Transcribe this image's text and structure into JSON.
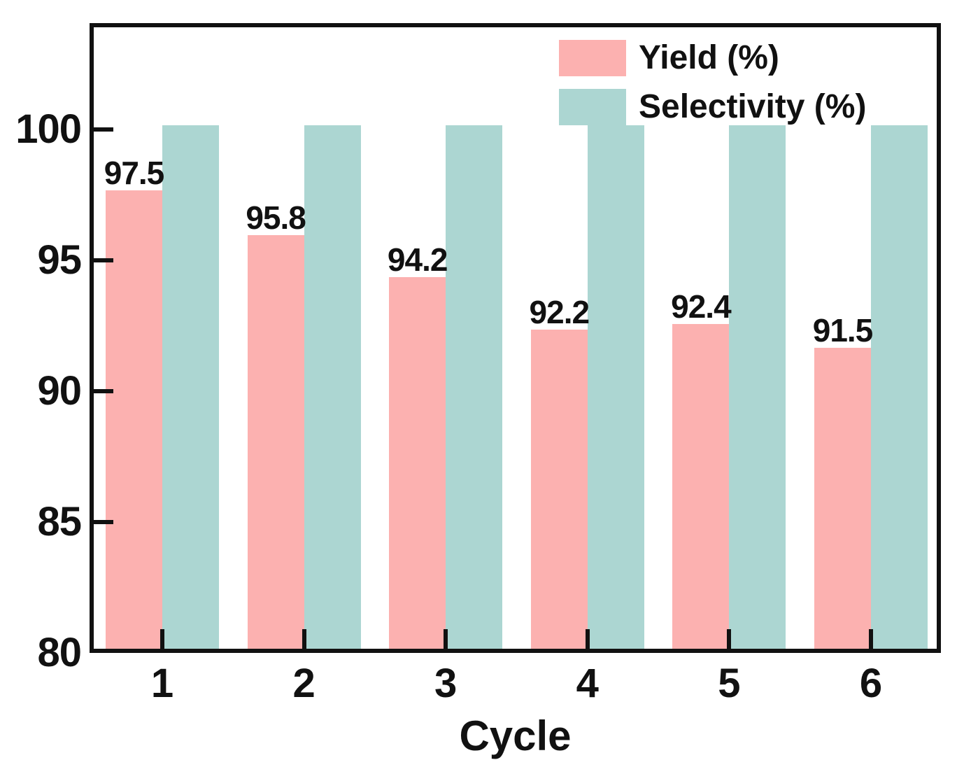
{
  "chart_data": {
    "type": "bar",
    "title": "",
    "xlabel": "Cycle",
    "ylabel": "",
    "categories": [
      "1",
      "2",
      "3",
      "4",
      "5",
      "6"
    ],
    "series": [
      {
        "name": "Yield (%)",
        "color": "#fcb1b0",
        "values": [
          97.5,
          95.8,
          94.2,
          92.2,
          92.4,
          91.5
        ],
        "value_labels": [
          "97.5",
          "95.8",
          "94.2",
          "92.2",
          "92.4",
          "91.5"
        ]
      },
      {
        "name": "Selectivity (%)",
        "color": "#acd6d2",
        "values": [
          100,
          100,
          100,
          100,
          100,
          100
        ],
        "value_labels": [
          "",
          "",
          "",
          "",
          "",
          ""
        ]
      }
    ],
    "yticks": [
      100,
      95,
      90,
      85,
      80
    ],
    "ylim": [
      80,
      100
    ],
    "grid": false,
    "legend_position": "top-right",
    "axis_color": "#111111",
    "label_color": "#111111"
  }
}
